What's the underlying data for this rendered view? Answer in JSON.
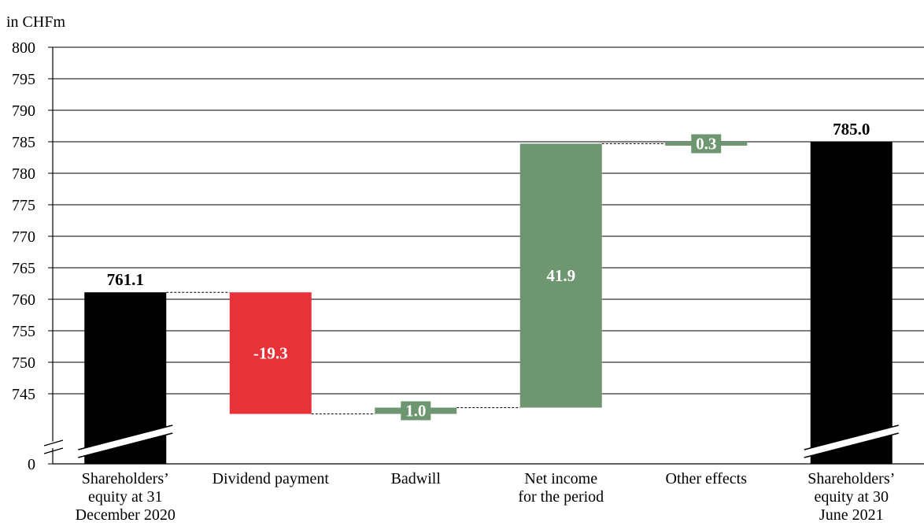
{
  "chart_data": {
    "type": "waterfall",
    "unit_label": "in CHFm",
    "yticks": [
      800,
      795,
      790,
      785,
      780,
      775,
      770,
      765,
      760,
      755,
      750,
      745
    ],
    "zero_tick": "0",
    "ylim": [
      741,
      800
    ],
    "axis_break": true,
    "grid": true,
    "categories": [
      [
        "Shareholders’",
        "equity at 31",
        "December 2020"
      ],
      [
        "Dividend payment"
      ],
      [
        "Badwill"
      ],
      [
        "Net income",
        "for the period"
      ],
      [
        "Other effects"
      ],
      [
        "Shareholders’",
        "equity at 30",
        "June 2021"
      ]
    ],
    "bars": [
      {
        "kind": "total",
        "start": 0,
        "end": 761.1,
        "label": "761.1",
        "color": "#000000"
      },
      {
        "kind": "delta",
        "start": 761.1,
        "end": 741.8,
        "label": "-19.3",
        "color": "#e8323a"
      },
      {
        "kind": "delta",
        "start": 741.8,
        "end": 742.8,
        "label": "1.0",
        "color": "#6e9670"
      },
      {
        "kind": "delta",
        "start": 742.8,
        "end": 784.7,
        "label": "41.9",
        "color": "#6e9670"
      },
      {
        "kind": "delta",
        "start": 784.7,
        "end": 785.0,
        "label": "0.3",
        "color": "#6e9670"
      },
      {
        "kind": "total",
        "start": 0,
        "end": 785.0,
        "label": "785.0",
        "color": "#000000"
      }
    ]
  }
}
